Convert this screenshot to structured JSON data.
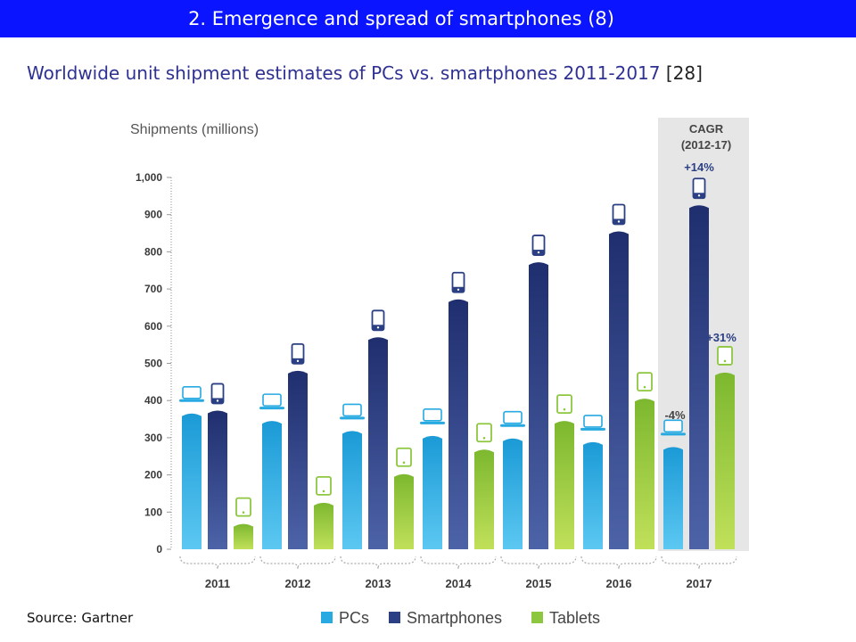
{
  "header": {
    "title": "2. Emergence and spread of smartphones (8)",
    "subtitle": "Worldwide unit shipment estimates of PCs vs. smartphones 2011-2017",
    "ref": "[28]"
  },
  "source": "Source: Gartner",
  "colors": {
    "header_bg": "#0a14ff",
    "subtitle": "#2e3192",
    "pcs": "#27a9e1",
    "smartphones": "#2b3f84",
    "tablets": "#8dc63f",
    "cagr_panel": "#e6e6e6",
    "axis_text": "#3a3a3a"
  },
  "chart_data": {
    "type": "bar",
    "ylabel": "Shipments (millions)",
    "categories": [
      "2011",
      "2012",
      "2013",
      "2014",
      "2015",
      "2016",
      "2017"
    ],
    "ylim": [
      0,
      1000
    ],
    "yticks": [
      "0",
      "100",
      "200",
      "300",
      "400",
      "500",
      "600",
      "700",
      "800",
      "900",
      "1,000"
    ],
    "series": [
      {
        "name": "PCs",
        "icon": "laptop-icon",
        "values": [
          365,
          345,
          318,
          305,
          298,
          288,
          275
        ]
      },
      {
        "name": "Smartphones",
        "icon": "smartphone-icon",
        "values": [
          373,
          480,
          570,
          672,
          772,
          855,
          925
        ]
      },
      {
        "name": "Tablets",
        "icon": "tablet-icon",
        "values": [
          68,
          125,
          202,
          268,
          345,
          405,
          475
        ]
      }
    ],
    "cagr": {
      "title": "CAGR",
      "period": "(2012-17)",
      "smartphones": "+14%",
      "tablets": "+31%",
      "pcs": "-4%"
    },
    "legend_position": "bottom",
    "grid": false
  }
}
